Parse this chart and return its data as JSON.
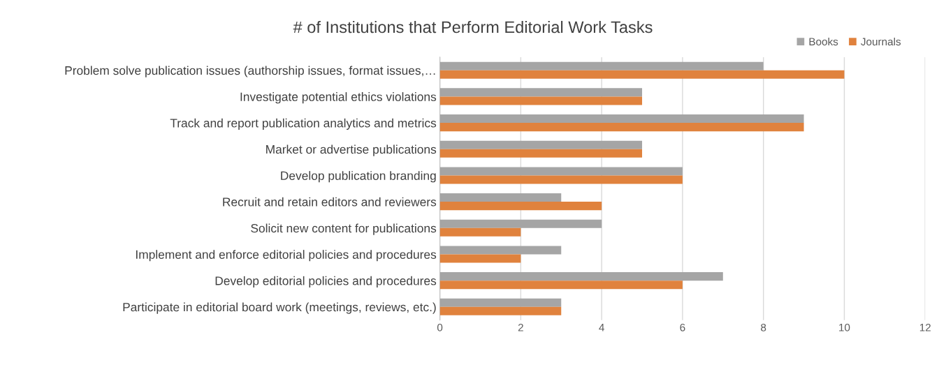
{
  "chart_data": {
    "type": "bar",
    "orientation": "horizontal",
    "title": "# of Institutions that Perform Editorial Work Tasks",
    "categories": [
      "Problem solve publication issues (authorship issues, format issues,…",
      "Investigate potential ethics violations",
      "Track and report publication analytics and metrics",
      "Market or advertise publications",
      "Develop publication branding",
      "Recruit and retain editors and reviewers",
      "Solicit new content for publications",
      "Implement and enforce editorial policies and procedures",
      "Develop editorial policies and procedures",
      "Participate in editorial board work (meetings, reviews, etc.)"
    ],
    "series": [
      {
        "name": "Books",
        "color": "#a5a5a5",
        "values": [
          8,
          5,
          9,
          5,
          6,
          3,
          4,
          3,
          7,
          3
        ]
      },
      {
        "name": "Journals",
        "color": "#e0823d",
        "values": [
          10,
          5,
          9,
          5,
          6,
          4,
          2,
          2,
          6,
          3
        ]
      }
    ],
    "xlim": [
      0,
      12
    ],
    "xticks": [
      0,
      2,
      4,
      6,
      8,
      10,
      12
    ],
    "grid": "x",
    "legend": "top right"
  }
}
